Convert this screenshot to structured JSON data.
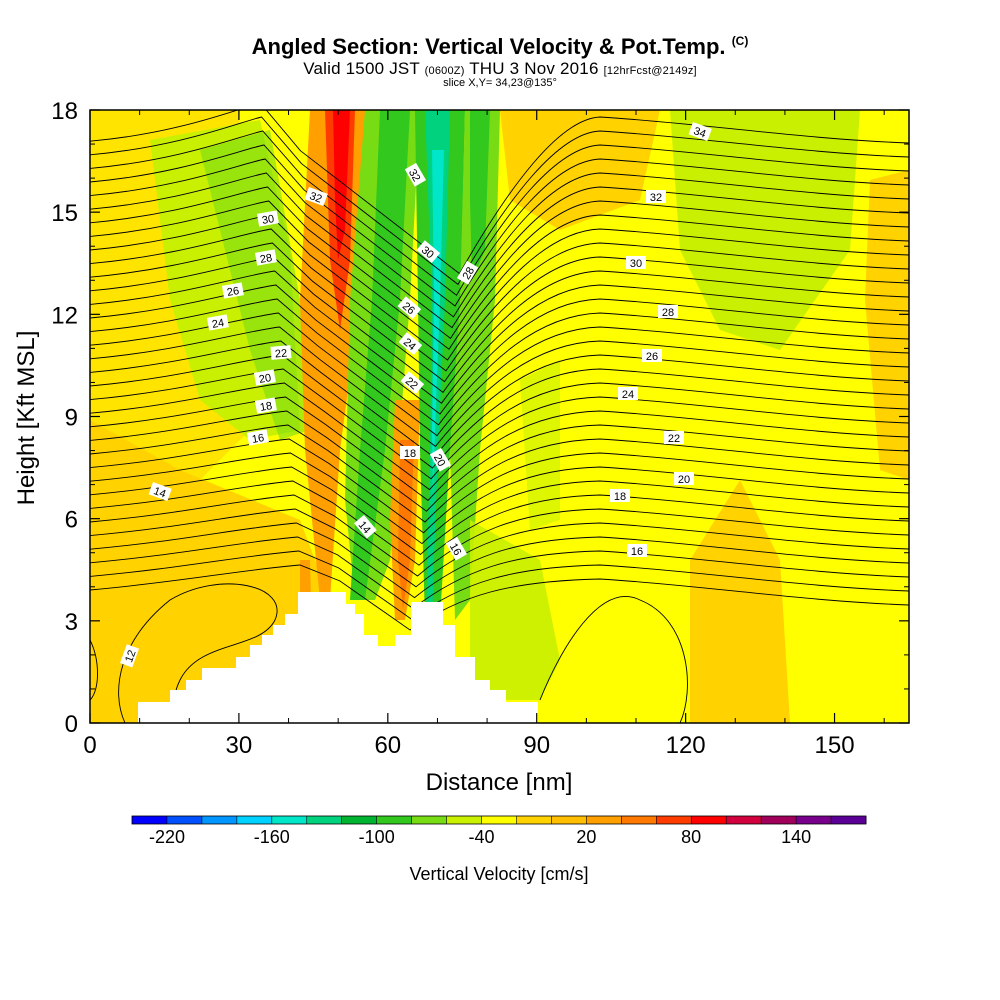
{
  "title": {
    "main": "Angled Section: Vertical Velocity & Pot.Temp.",
    "copyright": "(C)",
    "valid_prefix": "Valid 1500 JST",
    "valid_zulu": "(0600Z)",
    "valid_date": "THU 3 Nov 2016",
    "forecast": "[12hrFcst@2149z]",
    "slice": "slice X,Y= 34,23@135°"
  },
  "chart_data": {
    "type": "heatmap",
    "xlabel": "Distance [nm]",
    "ylabel": "Height [Kft MSL]",
    "xlim": [
      0,
      165
    ],
    "ylim": [
      0,
      18
    ],
    "x_ticks": [
      "0",
      "30",
      "60",
      "90",
      "120",
      "150"
    ],
    "y_ticks": [
      "0",
      "3",
      "6",
      "9",
      "12",
      "15",
      "18"
    ],
    "contour_variable": "Potential Temperature",
    "contour_labels": [
      "12",
      "14",
      "14",
      "16",
      "16",
      "16",
      "18",
      "18",
      "18",
      "20",
      "20",
      "20",
      "22",
      "22",
      "22",
      "24",
      "24",
      "24",
      "26",
      "26",
      "26",
      "28",
      "28",
      "28",
      "30",
      "30",
      "30",
      "32",
      "32",
      "32",
      "34"
    ],
    "colorbar": {
      "label": "Vertical Velocity [cm/s]",
      "tick_labels": [
        "-220",
        "-160",
        "-100",
        "-40",
        "20",
        "80",
        "140"
      ],
      "colors": [
        "#0000ff",
        "#0050ff",
        "#0096ff",
        "#00d2ff",
        "#00e6c8",
        "#00d27d",
        "#00b432",
        "#32c81e",
        "#78dc14",
        "#c8f000",
        "#ffff00",
        "#ffd200",
        "#ffbe00",
        "#ffa000",
        "#ff7800",
        "#ff3c00",
        "#ff0000",
        "#d2003c",
        "#a0005a",
        "#78008c",
        "#5a0096"
      ]
    }
  }
}
